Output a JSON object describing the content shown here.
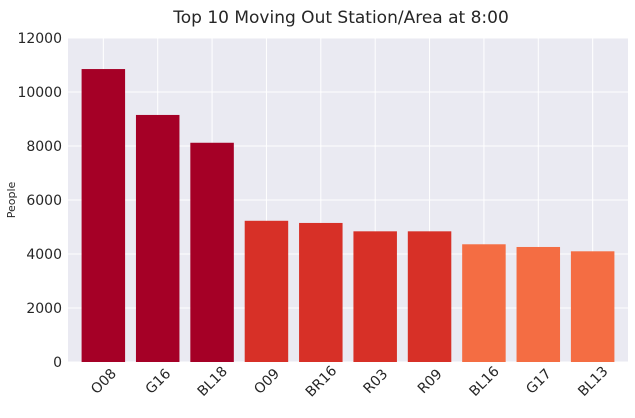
{
  "chart_data": {
    "type": "bar",
    "title": "Top 10 Moving Out Station/Area at 8:00",
    "xlabel": "",
    "ylabel": "People",
    "ylim": [
      0,
      12000
    ],
    "yticks": [
      0,
      2000,
      4000,
      6000,
      8000,
      10000,
      12000
    ],
    "grid": true,
    "legend": "none",
    "categories": [
      "O08",
      "G16",
      "BL18",
      "O09",
      "BR16",
      "R03",
      "R09",
      "BL16",
      "G17",
      "BL13"
    ],
    "values": [
      10850,
      9150,
      8120,
      5230,
      5150,
      4840,
      4840,
      4360,
      4260,
      4100
    ],
    "bar_colors": [
      "#a50026",
      "#a50026",
      "#a50026",
      "#d73027",
      "#d73027",
      "#d73027",
      "#d73027",
      "#f46d43",
      "#f46d43",
      "#f46d43"
    ],
    "background_color": "#eaeaf2",
    "grid_color": "#ffffff"
  }
}
